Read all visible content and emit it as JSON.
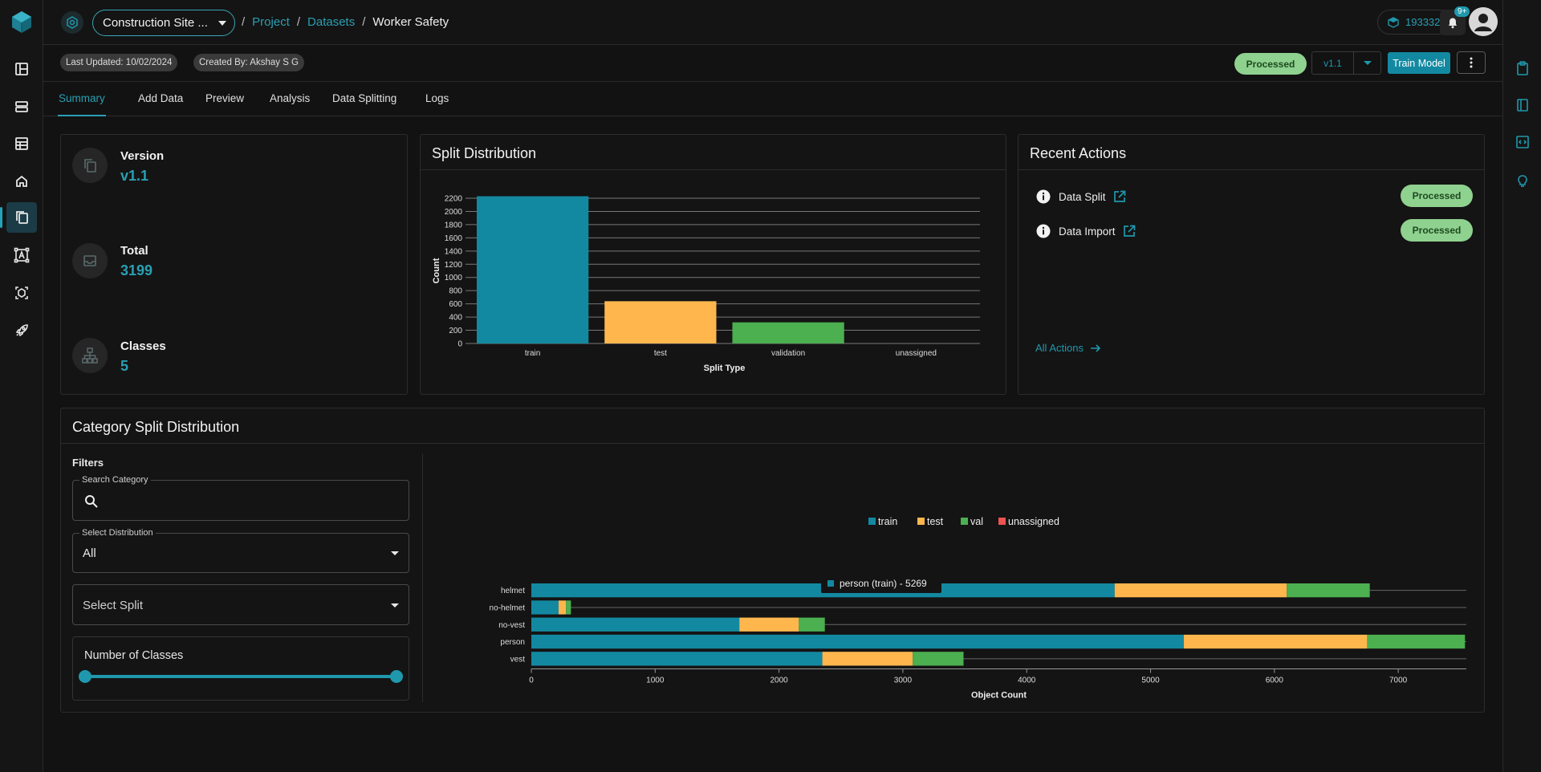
{
  "header": {
    "project": "Construction Site ...",
    "breadcrumb": [
      "Project",
      "Datasets",
      "Worker Safety"
    ],
    "credits": "193332",
    "notifications_badge": "9+"
  },
  "meta": {
    "last_updated": "Last Updated: 10/02/2024",
    "created_by": "Created By: Akshay S G",
    "status": "Processed",
    "version": "v1.1",
    "train_button": "Train Model"
  },
  "tabs": [
    "Summary",
    "Add Data",
    "Preview",
    "Analysis",
    "Data Splitting",
    "Logs"
  ],
  "active_tab": "Summary",
  "stats": {
    "version_label": "Version",
    "version_value": "v1.1",
    "total_label": "Total",
    "total_value": "3199",
    "classes_label": "Classes",
    "classes_value": "5"
  },
  "split_card": {
    "title": "Split Distribution"
  },
  "recent_actions": {
    "title": "Recent Actions",
    "items": [
      {
        "label": "Data Split",
        "status": "Processed"
      },
      {
        "label": "Data Import",
        "status": "Processed"
      }
    ],
    "all_actions": "All Actions"
  },
  "category_card": {
    "title": "Category Split Distribution",
    "filters_title": "Filters",
    "search_legend": "Search Category",
    "search_value": "",
    "distribution_legend": "Select Distribution",
    "distribution_value": "All",
    "split_placeholder": "Select Split",
    "num_classes_label": "Number of Classes",
    "tooltip": "person (train) - 5269"
  },
  "chart_data": [
    {
      "type": "bar",
      "xlabel": "Split Type",
      "ylabel": "Count",
      "categories": [
        "train",
        "test",
        "validation",
        "unassigned"
      ],
      "values": [
        2230,
        640,
        320,
        0
      ],
      "colors": [
        "#1389a1",
        "#ffb74d",
        "#4caf50",
        "#ef5350"
      ],
      "ylim": [
        0,
        2200
      ],
      "yticks": [
        0,
        200,
        400,
        600,
        800,
        1000,
        1200,
        1400,
        1600,
        1800,
        2000,
        2200
      ],
      "grid": true
    },
    {
      "type": "bar",
      "orientation": "horizontal",
      "stacked": true,
      "xlabel": "Object Count",
      "categories": [
        "helmet",
        "no-helmet",
        "no-vest",
        "person",
        "vest"
      ],
      "series": [
        {
          "name": "train",
          "color": "#1389a1",
          "values": [
            4710,
            220,
            1680,
            5269,
            2350
          ]
        },
        {
          "name": "test",
          "color": "#ffb74d",
          "values": [
            1390,
            60,
            480,
            1480,
            730
          ]
        },
        {
          "name": "val",
          "color": "#4caf50",
          "values": [
            670,
            40,
            210,
            790,
            410
          ]
        },
        {
          "name": "unassigned",
          "color": "#ef5350",
          "values": [
            0,
            0,
            0,
            0,
            0
          ]
        }
      ],
      "xlim": [
        0,
        7550
      ],
      "xticks": [
        0,
        1000,
        2000,
        3000,
        4000,
        5000,
        6000,
        7000
      ],
      "legend": "top-center",
      "grid": true
    }
  ]
}
